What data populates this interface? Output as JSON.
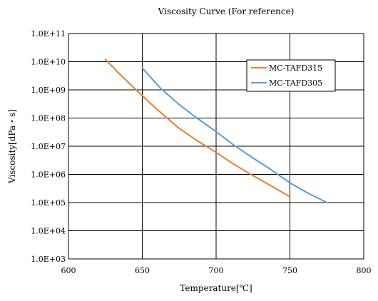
{
  "chart_data": {
    "type": "line",
    "title": "Viscosity Curve (For reference)",
    "xlabel": "Temperature[℃]",
    "ylabel": "Viscosity[dPa・s]",
    "xlim": [
      600,
      800
    ],
    "x_ticks": [
      600,
      650,
      700,
      750,
      800
    ],
    "x_tick_labels": [
      "600",
      "650",
      "700",
      "750",
      "800"
    ],
    "y_scale": "log",
    "ylim": [
      1000,
      100000000000
    ],
    "y_ticks": [
      1000,
      10000,
      100000,
      1000000,
      10000000,
      100000000,
      1000000000,
      10000000000,
      100000000000
    ],
    "y_tick_labels": [
      "1.0E+03",
      "1.0E+04",
      "1.0E+05",
      "1.0E+06",
      "1.0E+07",
      "1.0E+08",
      "1.0E+09",
      "1.0E+10",
      "1.0E+11"
    ],
    "grid": true,
    "legend_position": "top-right",
    "series": [
      {
        "name": "MC-TAFD315",
        "color": "#ED7D31",
        "x": [
          625,
          635,
          645,
          655,
          665,
          675,
          687,
          700,
          712,
          725,
          737,
          750
        ],
        "y": [
          12000000000,
          3500000000,
          1100000000,
          350000000,
          120000000,
          43000000,
          16000000,
          6000000,
          2300000,
          900000,
          400000,
          160000
        ]
      },
      {
        "name": "MC-TAFD305",
        "color": "#5B9BD5",
        "x": [
          650,
          662,
          675,
          687,
          700,
          712,
          725,
          737,
          750,
          762,
          775
        ],
        "y": [
          6000000000,
          1200000000,
          300000000,
          100000000,
          33000000,
          11000000,
          3800000,
          1500000,
          500000,
          220000,
          100000
        ]
      }
    ]
  }
}
